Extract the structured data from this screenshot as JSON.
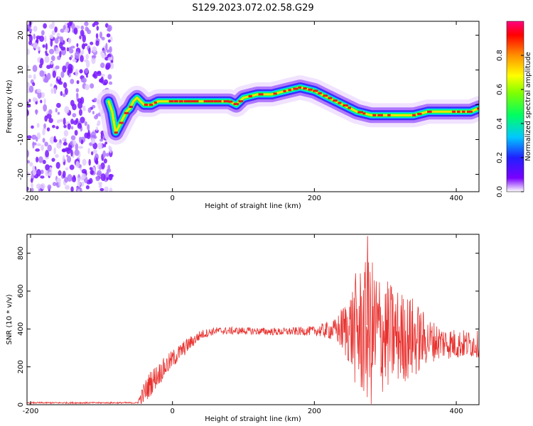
{
  "title": "S129.2023.072.02.58.G29",
  "chart_data": [
    {
      "type": "heatmap",
      "xlabel": "Height of straight line (km)",
      "ylabel": "Frequency (Hz)",
      "xlim": [
        -205,
        432
      ],
      "ylim": [
        -25,
        24
      ],
      "xticks": [
        -200,
        0,
        200,
        400
      ],
      "yticks": [
        -20,
        -10,
        0,
        10,
        20
      ],
      "colorbar": {
        "label": "Normalized spectral amplitude",
        "range": [
          0,
          1
        ],
        "ticks": [
          0,
          0.2,
          0.4,
          0.6,
          0.8
        ],
        "tick_labels": [
          "0.0",
          "0.2",
          "0.4",
          "0.6",
          "0.8"
        ],
        "colormap": "rainbow (purple to red)"
      },
      "noise_region_x": [
        -205,
        -85
      ],
      "ridge": {
        "x": [
          -90,
          -85,
          -80,
          -75,
          -70,
          -65,
          -60,
          -55,
          -50,
          -45,
          -40,
          -30,
          -20,
          -10,
          0,
          20,
          40,
          60,
          80,
          90,
          100,
          120,
          140,
          160,
          180,
          200,
          220,
          240,
          260,
          280,
          300,
          320,
          340,
          360,
          380,
          400,
          420,
          432
        ],
        "y": [
          1,
          -2,
          -8,
          -6,
          -4,
          -2,
          -1,
          1,
          2,
          1,
          0,
          0,
          1,
          1,
          1,
          1,
          1,
          1,
          1,
          0,
          2,
          3,
          3,
          4,
          5,
          4,
          2,
          0,
          -2,
          -3,
          -3,
          -3,
          -3,
          -2,
          -2,
          -2,
          -2,
          -1
        ]
      }
    },
    {
      "type": "line",
      "xlabel": "Height of straight line (km)",
      "ylabel": "SNR (10 * v/v)",
      "xlim": [
        -205,
        432
      ],
      "ylim": [
        0,
        900
      ],
      "xticks": [
        -200,
        0,
        200,
        400
      ],
      "yticks": [
        0,
        200,
        400,
        600,
        800
      ],
      "color": "#e8322f",
      "envelope": {
        "x": [
          -205,
          -50,
          -40,
          -30,
          -20,
          -10,
          0,
          20,
          40,
          60,
          100,
          150,
          200,
          230,
          250,
          260,
          280,
          300,
          320,
          340,
          360,
          380,
          400,
          432
        ],
        "mean": [
          10,
          10,
          60,
          120,
          160,
          200,
          240,
          310,
          370,
          390,
          390,
          385,
          390,
          395,
          400,
          390,
          380,
          370,
          360,
          350,
          340,
          330,
          320,
          320
        ],
        "amplitude": [
          4,
          4,
          60,
          70,
          60,
          55,
          50,
          40,
          25,
          20,
          20,
          20,
          25,
          60,
          200,
          330,
          400,
          300,
          250,
          220,
          120,
          90,
          80,
          70
        ],
        "peak": {
          "x": 275,
          "y": 890
        }
      }
    }
  ]
}
